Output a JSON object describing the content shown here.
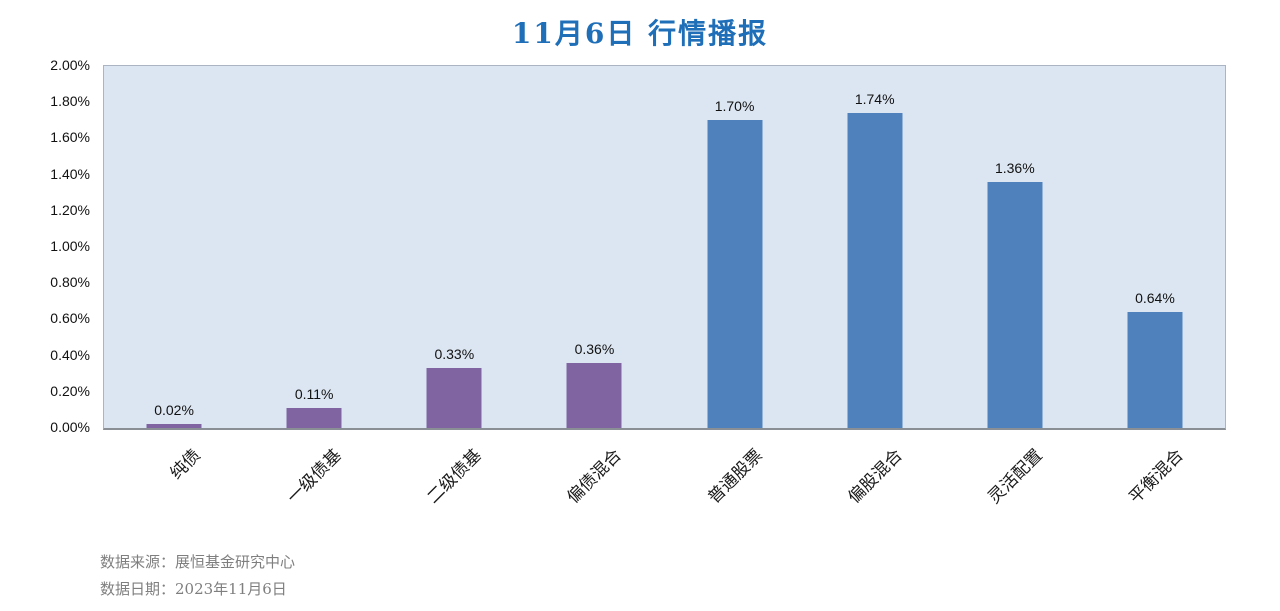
{
  "title": "11月6日  行情播报",
  "colors": {
    "title": "#1f6fb8",
    "plot_background": "#dce6f2",
    "purple_bar": "#8064a2",
    "blue_bar": "#4f81bd",
    "footer_text": "#7f7f7f"
  },
  "chart_data": {
    "type": "bar",
    "title": "11月6日  行情播报",
    "categories": [
      "纯债",
      "一级债基",
      "二级债基",
      "偏债混合",
      "普通股票",
      "偏股混合",
      "灵活配置",
      "平衡混合"
    ],
    "values": [
      0.02,
      0.11,
      0.33,
      0.36,
      1.7,
      1.74,
      1.36,
      0.64
    ],
    "value_labels": [
      "0.02%",
      "0.11%",
      "0.33%",
      "0.36%",
      "1.70%",
      "1.74%",
      "1.36%",
      "0.64%"
    ],
    "bar_colors": [
      "#8064a2",
      "#8064a2",
      "#8064a2",
      "#8064a2",
      "#4f81bd",
      "#4f81bd",
      "#4f81bd",
      "#4f81bd"
    ],
    "xlabel": "",
    "ylabel": "",
    "ylim": [
      0,
      2.0
    ],
    "y_ticks": [
      "2.00%",
      "1.80%",
      "1.60%",
      "1.40%",
      "1.20%",
      "1.00%",
      "0.80%",
      "0.60%",
      "0.40%",
      "0.20%",
      "0.00%"
    ],
    "grid": false,
    "legend_position": "none",
    "plot_bg": "#dce6f2"
  },
  "footer": {
    "source": "数据来源：展恒基金研究中心",
    "date": "数据日期：2023年11月6日"
  }
}
